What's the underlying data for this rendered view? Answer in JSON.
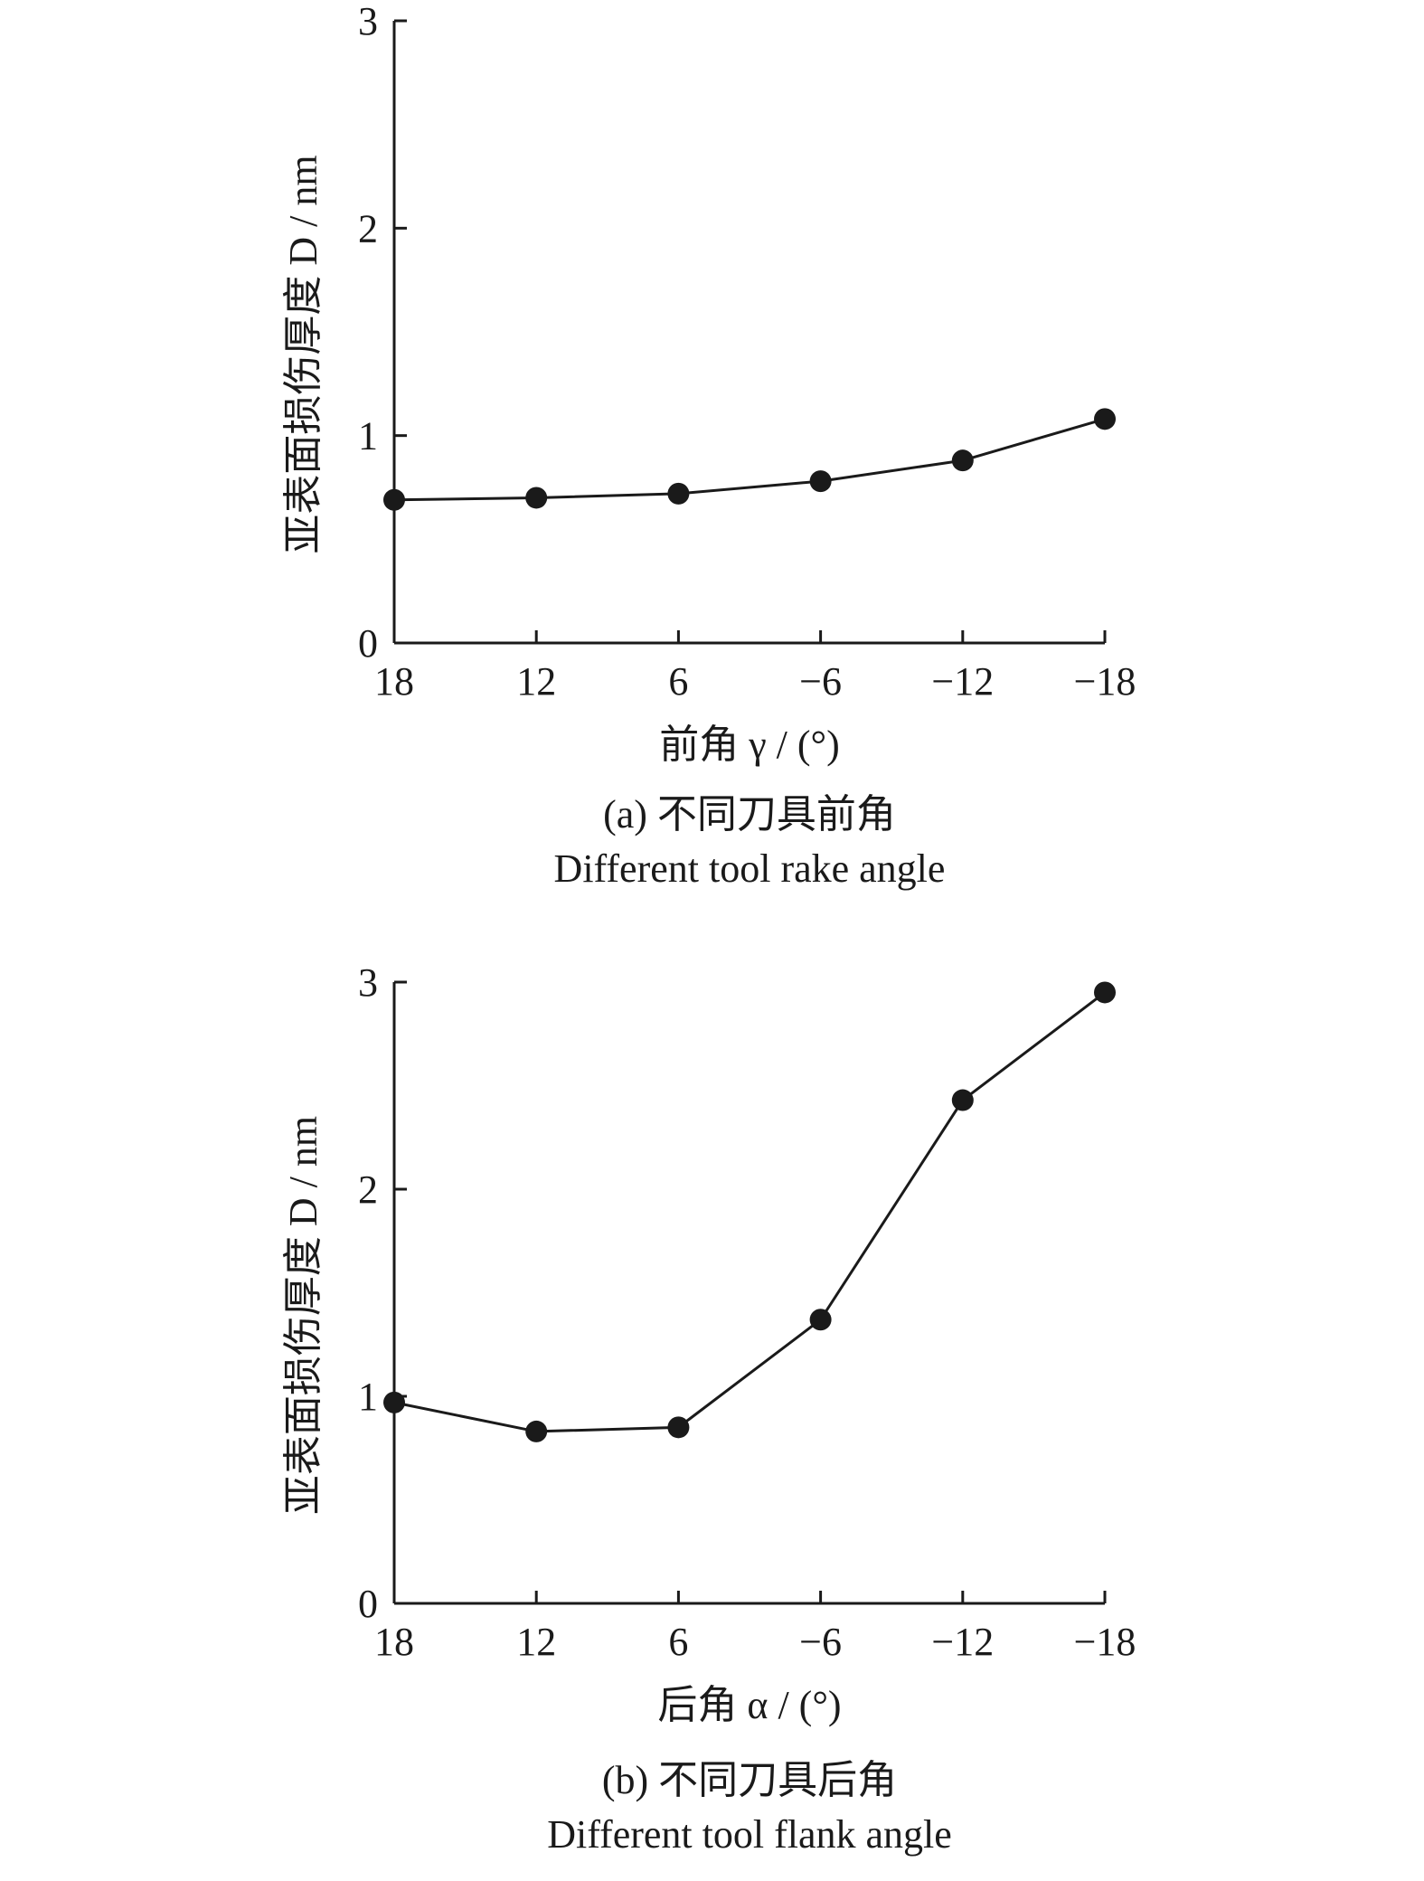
{
  "chart_data": [
    {
      "type": "line",
      "categories": [
        "18",
        "12",
        "6",
        "−6",
        "−12",
        "−18"
      ],
      "values": [
        0.69,
        0.7,
        0.72,
        0.78,
        0.88,
        1.08
      ],
      "xlabel": "前角 γ / (°)",
      "ylabel": "亚表面损伤厚度 D / nm",
      "ylim": [
        0,
        3
      ],
      "yticks": [
        "0",
        "1",
        "2",
        "3"
      ],
      "caption_cn": "(a) 不同刀具前角",
      "caption_en": "Different tool rake angle",
      "grid": false,
      "legend": "none"
    },
    {
      "type": "line",
      "categories": [
        "18",
        "12",
        "6",
        "−6",
        "−12",
        "−18"
      ],
      "values": [
        0.97,
        0.83,
        0.85,
        1.37,
        2.43,
        2.95
      ],
      "xlabel": "后角 α / (°)",
      "ylabel": "亚表面损伤厚度 D / nm",
      "ylim": [
        0,
        3
      ],
      "yticks": [
        "0",
        "1",
        "2",
        "3"
      ],
      "caption_cn": "(b) 不同刀具后角",
      "caption_en": "Different tool flank angle",
      "grid": false,
      "legend": "none"
    }
  ]
}
